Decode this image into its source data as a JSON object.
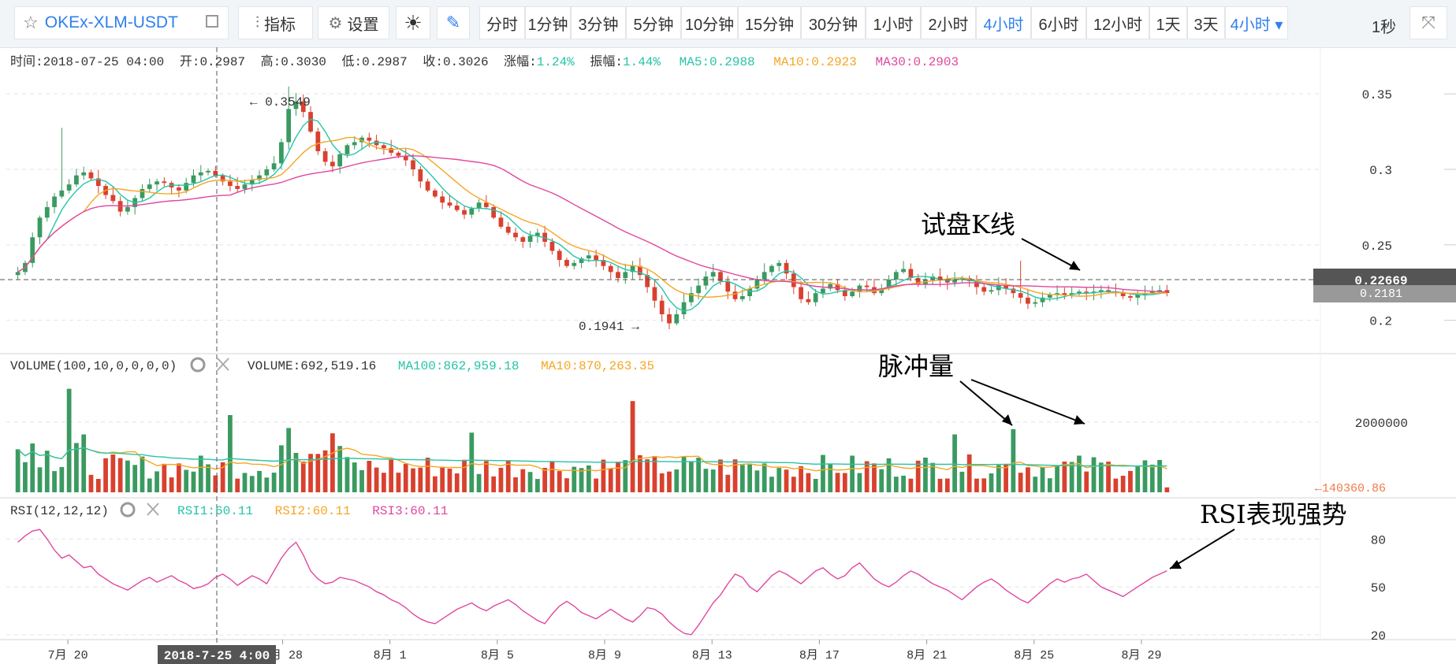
{
  "toolbar": {
    "symbol": "OKEx-XLM-USDT",
    "index_label": "指标",
    "settings_label": "设置",
    "intervals": [
      "分时",
      "1分钟",
      "3分钟",
      "5分钟",
      "10分钟",
      "15分钟",
      "30分钟",
      "1小时",
      "2小时",
      "4小时",
      "6小时",
      "12小时",
      "1天",
      "3天",
      "4小时"
    ],
    "active_interval": "4小时",
    "speed": "1秒"
  },
  "info_bar": {
    "time_label": "时间:",
    "time": "2018-07-25 04:00",
    "open_label": "开:",
    "open": "0.2987",
    "high_label": "高:",
    "high": "0.3030",
    "low_label": "低:",
    "low": "0.2987",
    "close_label": "收:",
    "close": "0.3026",
    "change_label": "涨幅:",
    "change": "1.24%",
    "amp_label": "振幅:",
    "amp": "1.44%",
    "ma5_label": "MA5:",
    "ma5": "0.2988",
    "ma10_label": "MA10:",
    "ma10": "0.2923",
    "ma30_label": "MA30:",
    "ma30": "0.2903"
  },
  "volume_bar": {
    "title": "VOLUME(100,10,0,0,0,0)",
    "volume_label": "VOLUME:",
    "volume": "692,519.16",
    "ma100_label": "MA100:",
    "ma100": "862,959.18",
    "ma10_label": "MA10:",
    "ma10": "870,263.35"
  },
  "rsi_bar": {
    "title": "RSI(12,12,12)",
    "rsi1_label": "RSI1:",
    "rsi1": "60.11",
    "rsi2_label": "RSI2:",
    "rsi2": "60.11",
    "rsi3_label": "RSI3:",
    "rsi3": "60.11"
  },
  "price_markers": {
    "high_label": "← 0.3549",
    "low_label": "0.1941 →",
    "current": "0.22669",
    "secondary": "0.2181",
    "volume_current": "←140360.86",
    "crosshair_date": "2018-7-25 4:00"
  },
  "annotations": {
    "probe": "试盘K线",
    "pulse": "脉冲量",
    "rsi": "RSI表现强势"
  },
  "colors": {
    "up": "#3a9a60",
    "down": "#d8412e",
    "ma5": "#26c4a8",
    "ma10": "#f5a623",
    "ma30": "#e0479e",
    "grid": "#e0e3e6",
    "text": "#333333"
  },
  "chart_data": [
    {
      "type": "candlestick",
      "y_ticks": [
        "0.2",
        "0.25",
        "0.3",
        "0.35"
      ],
      "ylim": [
        0.18,
        0.36
      ],
      "x_ticks": [
        "7月 20",
        "7月 28",
        "8月 1",
        "8月 5",
        "8月 9",
        "8月 13",
        "8月 17",
        "8月 21",
        "8月 25",
        "8月 29"
      ],
      "x_range": [
        "2018-07-18",
        "2018-08-30"
      ],
      "close_series": [
        0.232,
        0.238,
        0.255,
        0.268,
        0.275,
        0.282,
        0.286,
        0.29,
        0.296,
        0.298,
        0.294,
        0.289,
        0.283,
        0.279,
        0.272,
        0.275,
        0.281,
        0.287,
        0.29,
        0.292,
        0.291,
        0.288,
        0.286,
        0.291,
        0.296,
        0.298,
        0.299,
        0.296,
        0.292,
        0.289,
        0.287,
        0.29,
        0.293,
        0.296,
        0.3,
        0.304,
        0.318,
        0.34,
        0.345,
        0.338,
        0.325,
        0.312,
        0.305,
        0.302,
        0.31,
        0.316,
        0.318,
        0.321,
        0.319,
        0.316,
        0.314,
        0.311,
        0.309,
        0.306,
        0.3,
        0.292,
        0.286,
        0.282,
        0.278,
        0.276,
        0.273,
        0.27,
        0.274,
        0.278,
        0.275,
        0.268,
        0.262,
        0.258,
        0.255,
        0.252,
        0.256,
        0.258,
        0.252,
        0.246,
        0.24,
        0.236,
        0.238,
        0.241,
        0.243,
        0.24,
        0.236,
        0.232,
        0.228,
        0.232,
        0.236,
        0.23,
        0.222,
        0.213,
        0.204,
        0.198,
        0.204,
        0.212,
        0.218,
        0.223,
        0.229,
        0.232,
        0.226,
        0.219,
        0.214,
        0.216,
        0.221,
        0.227,
        0.232,
        0.236,
        0.238,
        0.231,
        0.222,
        0.214,
        0.212,
        0.218,
        0.221,
        0.224,
        0.22,
        0.216,
        0.219,
        0.223,
        0.222,
        0.218,
        0.221,
        0.227,
        0.232,
        0.234,
        0.228,
        0.224,
        0.227,
        0.229,
        0.227,
        0.225,
        0.227,
        0.228,
        0.226,
        0.222,
        0.219,
        0.22,
        0.223,
        0.221,
        0.218,
        0.215,
        0.211,
        0.212,
        0.215,
        0.217,
        0.218,
        0.217,
        0.218,
        0.219,
        0.218,
        0.219,
        0.22,
        0.219,
        0.218,
        0.216,
        0.215,
        0.217,
        0.218,
        0.219,
        0.22,
        0.2181
      ],
      "marks": {
        "high": 0.3549,
        "low": 0.1941,
        "current": 0.22669
      }
    },
    {
      "type": "bar",
      "title": "VOLUME(100,10,0,0,0,0)",
      "y_ticks": [
        "2000000"
      ],
      "ylim": [
        0,
        3300000
      ],
      "series": [
        {
          "name": "MA100",
          "value": 862959.18
        },
        {
          "name": "MA10",
          "value": 870263.35
        }
      ],
      "peaks": [
        {
          "date": "2018-07-20",
          "value": 2950000,
          "side": "up"
        },
        {
          "date": "2018-07-26",
          "value": 2200000,
          "side": "up"
        },
        {
          "date": "2018-08-04",
          "value": 1700000,
          "side": "up"
        },
        {
          "date": "2018-08-10",
          "value": 2600000,
          "side": "down"
        },
        {
          "date": "2018-08-22",
          "value": 1650000,
          "side": "up"
        },
        {
          "date": "2018-08-24",
          "value": 1800000,
          "side": "up"
        }
      ],
      "last": 140360.86
    },
    {
      "type": "line",
      "title": "RSI(12,12,12)",
      "y_ticks": [
        "20",
        "50",
        "80"
      ],
      "ylim": [
        18,
        92
      ],
      "series": [
        {
          "name": "RSI3",
          "values": [
            78,
            82,
            85,
            86,
            80,
            73,
            68,
            70,
            66,
            62,
            63,
            58,
            55,
            52,
            50,
            48,
            51,
            54,
            56,
            53,
            55,
            57,
            54,
            52,
            49,
            50,
            52,
            56,
            58,
            55,
            51,
            54,
            57,
            55,
            52,
            60,
            68,
            74,
            78,
            70,
            60,
            55,
            52,
            53,
            56,
            55,
            54,
            52,
            50,
            47,
            45,
            42,
            40,
            37,
            33,
            30,
            28,
            27,
            30,
            33,
            36,
            38,
            40,
            37,
            35,
            38,
            40,
            42,
            39,
            35,
            32,
            29,
            27,
            33,
            38,
            41,
            38,
            34,
            32,
            30,
            33,
            36,
            33,
            30,
            28,
            32,
            37,
            36,
            33,
            28,
            24,
            21,
            20,
            26,
            33,
            40,
            45,
            52,
            58,
            56,
            50,
            47,
            52,
            57,
            60,
            58,
            55,
            52,
            56,
            60,
            62,
            58,
            55,
            57,
            62,
            65,
            60,
            55,
            52,
            50,
            53,
            57,
            60,
            58,
            55,
            52,
            50,
            48,
            45,
            42,
            46,
            50,
            53,
            55,
            52,
            48,
            45,
            42,
            40,
            44,
            48,
            52,
            55,
            53,
            55,
            56,
            58,
            54,
            50,
            48,
            46,
            44,
            47,
            50,
            53,
            56,
            58,
            60.11
          ]
        }
      ]
    }
  ]
}
